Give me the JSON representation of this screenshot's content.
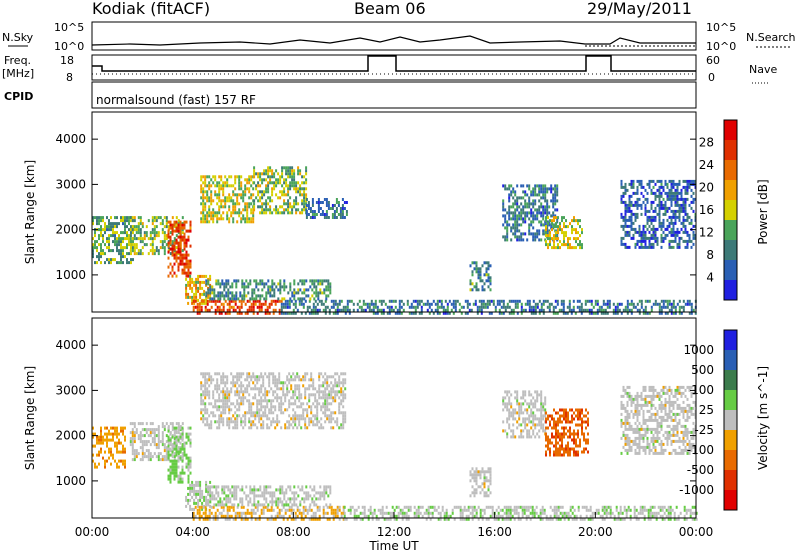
{
  "header": {
    "station": "Kodiak (fitACF)",
    "beam": "Beam 06",
    "date": "29/May/2011"
  },
  "summary_panels": {
    "nsky_label": "N.Sky",
    "nsearch_label": "N.Search",
    "count_top_tick_left": "10^5",
    "count_bottom_tick_left": "10^0",
    "count_top_tick_right": "10^5",
    "count_bottom_tick_right": "10^0",
    "freq_label_1": "Freq.",
    "freq_label_2": "[MHz]",
    "freq_top_tick": "18",
    "freq_bottom_tick": "8",
    "nave_label": "Nave",
    "nave_top_tick": "60",
    "nave_bottom_tick": "0",
    "cpid_label": "CPID",
    "cpid_text": "normalsound (fast) 157 RF"
  },
  "colors": {
    "power_scale": [
      "#2020e0",
      "#2a5fb4",
      "#3d7a78",
      "#4aa45a",
      "#d4d000",
      "#f0a000",
      "#e86a00",
      "#e03000",
      "#e00000"
    ],
    "velocity_scale": [
      "#2020e0",
      "#2a5fb4",
      "#3c7c4c",
      "#66cc44",
      "#bebebe",
      "#f0a000",
      "#e86a00",
      "#e03000",
      "#e00000"
    ]
  },
  "chart_data": [
    {
      "type": "heatmap",
      "panel": "power",
      "ylabel": "Slant Range [km]",
      "ylim": [
        180,
        4600
      ],
      "yticks": [
        "4000",
        "3000",
        "2000",
        "1000"
      ],
      "xlabel": "",
      "xticks": [],
      "colorbar_label": "Power [dB]",
      "colorbar_ticks": [
        "28",
        "24",
        "20",
        "16",
        "12",
        "8",
        "4"
      ],
      "colorbar_range": [
        0,
        32
      ],
      "grid": false,
      "echo_regions": [
        {
          "t0": 0.0,
          "t1": 1.6,
          "r0": 1300,
          "r1": 2300,
          "level": 12
        },
        {
          "t0": 1.5,
          "t1": 3.6,
          "r0": 1500,
          "r1": 2300,
          "level": 14
        },
        {
          "t0": 3.0,
          "t1": 3.9,
          "r0": 1000,
          "r1": 2200,
          "level": 26
        },
        {
          "t0": 3.7,
          "t1": 4.7,
          "r0": 400,
          "r1": 1000,
          "level": 18
        },
        {
          "t0": 4.0,
          "t1": 7.5,
          "r0": 180,
          "r1": 450,
          "level": 26
        },
        {
          "t0": 7.5,
          "t1": 24.0,
          "r0": 180,
          "r1": 450,
          "level": 8
        },
        {
          "t0": 4.3,
          "t1": 6.4,
          "r0": 2200,
          "r1": 3200,
          "level": 16
        },
        {
          "t0": 6.4,
          "t1": 8.5,
          "r0": 2400,
          "r1": 3400,
          "level": 14
        },
        {
          "t0": 8.5,
          "t1": 10.1,
          "r0": 2300,
          "r1": 2700,
          "level": 8
        },
        {
          "t0": 4.5,
          "t1": 9.5,
          "r0": 450,
          "r1": 900,
          "level": 10
        },
        {
          "t0": 15.0,
          "t1": 15.8,
          "r0": 700,
          "r1": 1300,
          "level": 10
        },
        {
          "t0": 16.3,
          "t1": 18.5,
          "r0": 1800,
          "r1": 3000,
          "level": 8
        },
        {
          "t0": 18.0,
          "t1": 19.5,
          "r0": 1600,
          "r1": 2300,
          "level": 16
        },
        {
          "t0": 21.0,
          "t1": 24.0,
          "r0": 1600,
          "r1": 3100,
          "level": 6
        }
      ]
    },
    {
      "type": "heatmap",
      "panel": "velocity",
      "ylabel": "Slant Range [km]",
      "ylim": [
        180,
        4600
      ],
      "yticks": [
        "4000",
        "3000",
        "2000",
        "1000"
      ],
      "xlabel": "Time UT",
      "xticks": [
        "00:00",
        "04:00",
        "08:00",
        "12:00",
        "16:00",
        "20:00",
        "00:00"
      ],
      "colorbar_label": "Velocity [m s^-1]",
      "colorbar_ticks": [
        "1000",
        "500",
        "100",
        "25",
        "-25",
        "-100",
        "-500",
        "-1000"
      ],
      "colorbar_range": [
        -1200,
        1200
      ],
      "grid": false,
      "echo_regions": [
        {
          "t0": 0.0,
          "t1": 1.3,
          "r0": 1300,
          "r1": 2200,
          "level": -300
        },
        {
          "t0": 1.5,
          "t1": 3.6,
          "r0": 1500,
          "r1": 2300,
          "level": 0
        },
        {
          "t0": 3.0,
          "t1": 3.9,
          "r0": 1000,
          "r1": 2200,
          "level": 200
        },
        {
          "t0": 3.7,
          "t1": 4.7,
          "r0": 400,
          "r1": 1000,
          "level": 60
        },
        {
          "t0": 4.0,
          "t1": 10.0,
          "r0": 180,
          "r1": 450,
          "level": -150
        },
        {
          "t0": 10.0,
          "t1": 24.0,
          "r0": 180,
          "r1": 450,
          "level": 60
        },
        {
          "t0": 4.3,
          "t1": 10.1,
          "r0": 2200,
          "r1": 3400,
          "level": 0
        },
        {
          "t0": 4.5,
          "t1": 9.5,
          "r0": 450,
          "r1": 900,
          "level": 40
        },
        {
          "t0": 15.0,
          "t1": 15.8,
          "r0": 700,
          "r1": 1300,
          "level": 0
        },
        {
          "t0": 16.3,
          "t1": 18.0,
          "r0": 2000,
          "r1": 3000,
          "level": 0
        },
        {
          "t0": 18.0,
          "t1": 19.7,
          "r0": 1600,
          "r1": 2600,
          "level": -600
        },
        {
          "t0": 21.0,
          "t1": 24.0,
          "r0": 1600,
          "r1": 3100,
          "level": 0
        }
      ]
    }
  ]
}
